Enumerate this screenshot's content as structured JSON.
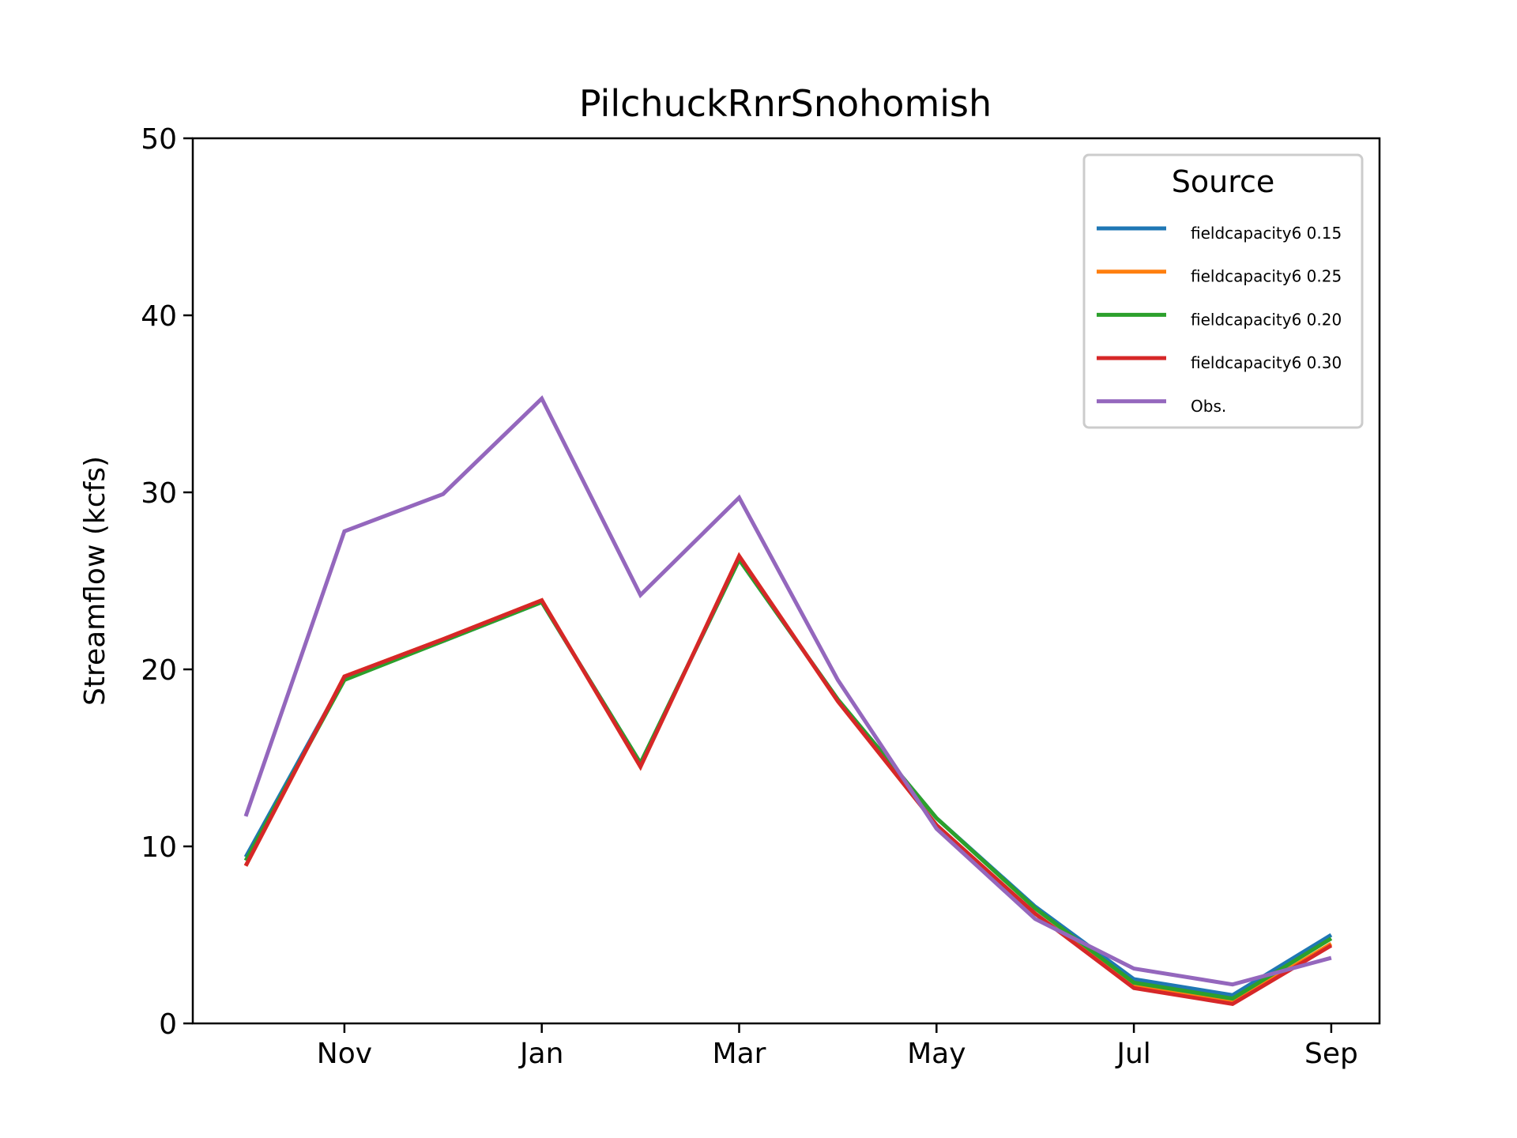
{
  "chart_data": {
    "type": "line",
    "title": "PilchuckRnrSnohomish",
    "xlabel": "",
    "ylabel": "Streamflow (kcfs)",
    "x": [
      "Oct",
      "Nov",
      "Dec",
      "Jan",
      "Feb",
      "Mar",
      "Apr",
      "May",
      "Jun",
      "Jul",
      "Aug",
      "Sep"
    ],
    "x_tick_labels": [
      "Nov",
      "Jan",
      "Mar",
      "May",
      "Jul",
      "Sep"
    ],
    "y_ticks": [
      0,
      10,
      20,
      30,
      40,
      50
    ],
    "ylim": [
      0,
      50
    ],
    "grid": false,
    "legend": {
      "title": "Source",
      "position": "top-right"
    },
    "series": [
      {
        "name": "fieldcapacity6 0.15",
        "color": "#1f77b4",
        "values": [
          9.4,
          19.5,
          21.6,
          23.8,
          14.7,
          26.2,
          18.3,
          11.6,
          6.6,
          2.5,
          1.6,
          5.0
        ]
      },
      {
        "name": "fieldcapacity6 0.25",
        "color": "#ff7f0e",
        "values": [
          8.9,
          19.6,
          21.7,
          23.9,
          14.5,
          26.4,
          18.2,
          11.2,
          6.2,
          2.1,
          1.2,
          4.5
        ]
      },
      {
        "name": "fieldcapacity6 0.20",
        "color": "#2ca02c",
        "values": [
          9.2,
          19.4,
          21.6,
          23.8,
          14.7,
          26.2,
          18.3,
          11.6,
          6.5,
          2.3,
          1.4,
          4.8
        ]
      },
      {
        "name": "fieldcapacity6 0.30",
        "color": "#d62728",
        "values": [
          8.9,
          19.6,
          21.7,
          23.9,
          14.5,
          26.4,
          18.2,
          11.2,
          6.2,
          2.0,
          1.1,
          4.4
        ]
      },
      {
        "name": "Obs.",
        "color": "#9467bd",
        "values": [
          11.7,
          27.8,
          29.9,
          35.3,
          24.2,
          29.7,
          19.4,
          11.0,
          5.9,
          3.1,
          2.2,
          3.7
        ]
      }
    ]
  }
}
